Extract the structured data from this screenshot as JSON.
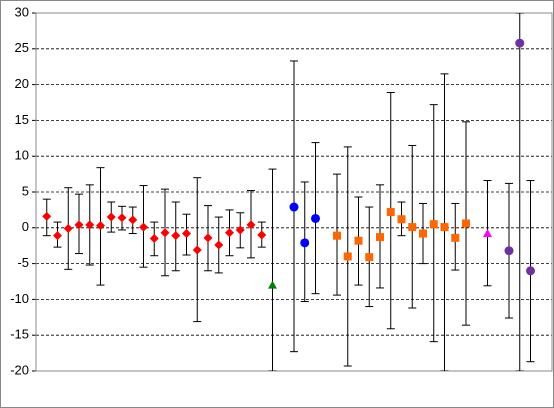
{
  "chart_data": {
    "type": "scatter",
    "xlim": [
      0,
      48
    ],
    "ylim": [
      -20,
      30
    ],
    "yticks": [
      -20,
      -15,
      -10,
      -5,
      0,
      5,
      10,
      15,
      20,
      25,
      30
    ],
    "grid": true,
    "series": [
      {
        "marker": "diamond",
        "color": "#ff0000",
        "x": [
          1,
          2,
          3,
          4,
          5,
          6,
          7,
          8,
          9,
          10,
          11,
          12,
          13,
          14,
          15,
          16,
          17,
          18,
          19,
          20,
          21
        ],
        "values": [
          1.6,
          -1.1,
          -0.1,
          0.4,
          0.4,
          0.3,
          1.5,
          1.4,
          1.1,
          0.1,
          -1.5,
          -0.7,
          -1.1,
          -0.8,
          -3.1,
          -1.4,
          -2.4,
          -0.7,
          -0.3,
          0.4,
          -1.0
        ],
        "error_high": [
          4.0,
          0.8,
          5.6,
          4.7,
          6.0,
          8.4,
          3.6,
          3.0,
          2.9,
          5.9,
          0.8,
          5.4,
          3.6,
          1.9,
          7.0,
          3.1,
          1.5,
          2.5,
          2.1,
          5.2,
          0.8
        ],
        "error_low": [
          -1.1,
          -2.7,
          -5.8,
          -3.6,
          -5.2,
          -8.0,
          -0.6,
          -0.3,
          -0.8,
          -5.5,
          -3.9,
          -6.7,
          -6.0,
          -3.8,
          -13.1,
          -6.0,
          -6.3,
          -3.9,
          -2.8,
          -4.2,
          -2.7
        ]
      },
      {
        "marker": "triangle",
        "color": "#008000",
        "x": [
          22
        ],
        "values": [
          -8.0
        ],
        "error_high": [
          8.2
        ],
        "error_low": [
          -20
        ]
      },
      {
        "marker": "circle",
        "color": "#0000ff",
        "x": [
          24,
          25,
          26
        ],
        "values": [
          2.9,
          -2.1,
          1.3
        ],
        "error_high": [
          23.3,
          6.4,
          11.9
        ],
        "error_low": [
          -17.3,
          -10.3,
          -9.2
        ]
      },
      {
        "marker": "square",
        "color": "#ff6600",
        "x": [
          28,
          29,
          30,
          31,
          32,
          33,
          34,
          35,
          36,
          37,
          38,
          39,
          40
        ],
        "values": [
          -1.1,
          -4.0,
          -1.8,
          -4.1,
          -1.3,
          2.2,
          1.2,
          0.1,
          -0.8,
          0.5,
          0.1,
          -1.4,
          0.6
        ],
        "error_high": [
          7.5,
          11.3,
          4.3,
          2.9,
          6.0,
          18.9,
          3.6,
          11.5,
          3.4,
          17.2,
          21.5,
          3.4,
          14.8
        ],
        "error_low": [
          -9.4,
          -19.3,
          -8.0,
          -11.0,
          -8.4,
          -14.1,
          -1.1,
          -11.2,
          -5.0,
          -15.9,
          -20,
          -5.9,
          -13.6
        ]
      },
      {
        "marker": "triangle",
        "color": "#ff00ff",
        "x": [
          42
        ],
        "values": [
          -0.8
        ],
        "error_high": [
          6.6
        ],
        "error_low": [
          -8.1
        ]
      },
      {
        "marker": "circle",
        "color": "#7030a0",
        "x": [
          44,
          45,
          46
        ],
        "values": [
          -3.2,
          25.8,
          -6.0
        ],
        "error_high": [
          6.2,
          30,
          6.6
        ],
        "error_low": [
          -12.6,
          -20,
          -18.7
        ]
      }
    ]
  }
}
